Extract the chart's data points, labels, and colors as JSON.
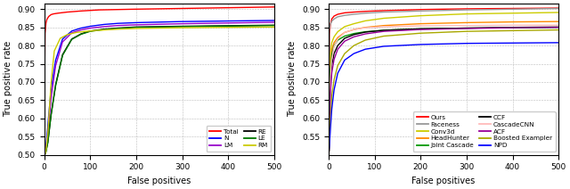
{
  "plot1": {
    "xlabel": "False positives",
    "ylabel": "True positive rate",
    "xlim": [
      0,
      500
    ],
    "ylim": [
      0.5,
      0.915
    ],
    "yticks": [
      0.5,
      0.55,
      0.6,
      0.65,
      0.7,
      0.75,
      0.8,
      0.85,
      0.9
    ],
    "xticks": [
      0,
      100,
      200,
      300,
      400,
      500
    ],
    "curves": [
      {
        "label": "Total",
        "color": "#ff0000",
        "x": [
          0,
          1,
          2,
          4,
          6,
          10,
          15,
          20,
          30,
          50,
          80,
          120,
          200,
          300,
          500
        ],
        "y": [
          0.5,
          0.714,
          0.834,
          0.862,
          0.872,
          0.88,
          0.885,
          0.887,
          0.889,
          0.892,
          0.895,
          0.898,
          0.9,
          0.902,
          0.906
        ]
      },
      {
        "label": "N",
        "color": "#0000ff",
        "x": [
          0,
          1,
          3,
          8,
          15,
          25,
          40,
          60,
          80,
          100,
          130,
          160,
          200,
          300,
          500
        ],
        "y": [
          0.5,
          0.502,
          0.505,
          0.58,
          0.68,
          0.76,
          0.818,
          0.84,
          0.848,
          0.853,
          0.858,
          0.861,
          0.863,
          0.866,
          0.869
        ]
      },
      {
        "label": "LM",
        "color": "#9900cc",
        "x": [
          0,
          1,
          3,
          8,
          15,
          25,
          40,
          60,
          80,
          100,
          130,
          160,
          200,
          300,
          500
        ],
        "y": [
          0.5,
          0.502,
          0.504,
          0.555,
          0.655,
          0.745,
          0.81,
          0.835,
          0.843,
          0.848,
          0.852,
          0.855,
          0.857,
          0.86,
          0.864
        ]
      },
      {
        "label": "RE",
        "color": "#000000",
        "x": [
          0,
          1,
          3,
          8,
          15,
          25,
          40,
          60,
          80,
          100,
          130,
          160,
          200,
          300,
          500
        ],
        "y": [
          0.5,
          0.502,
          0.503,
          0.535,
          0.61,
          0.693,
          0.775,
          0.818,
          0.832,
          0.84,
          0.845,
          0.848,
          0.851,
          0.853,
          0.856
        ]
      },
      {
        "label": "LE",
        "color": "#007700",
        "x": [
          0,
          1,
          3,
          8,
          15,
          25,
          40,
          60,
          80,
          100,
          130,
          160,
          200,
          300,
          500
        ],
        "y": [
          0.5,
          0.502,
          0.503,
          0.533,
          0.608,
          0.69,
          0.773,
          0.817,
          0.831,
          0.839,
          0.844,
          0.847,
          0.85,
          0.852,
          0.855
        ]
      },
      {
        "label": "RM",
        "color": "#cccc00",
        "x": [
          0,
          1,
          3,
          8,
          15,
          22,
          35,
          50,
          70,
          90,
          120,
          160,
          200,
          300,
          500
        ],
        "y": [
          0.5,
          0.502,
          0.503,
          0.558,
          0.697,
          0.785,
          0.82,
          0.83,
          0.836,
          0.839,
          0.842,
          0.845,
          0.847,
          0.849,
          0.851
        ]
      }
    ]
  },
  "plot2": {
    "xlabel": "False positives",
    "ylabel": "True positive rate",
    "xlim": [
      0,
      500
    ],
    "ylim": [
      0.5,
      0.915
    ],
    "yticks": [
      0.55,
      0.6,
      0.65,
      0.7,
      0.75,
      0.8,
      0.85,
      0.9
    ],
    "xticks": [
      0,
      100,
      200,
      300,
      400,
      500
    ],
    "curves": [
      {
        "label": "Ours",
        "color": "#ff0000",
        "x": [
          0,
          1,
          2,
          4,
          7,
          12,
          20,
          35,
          55,
          80,
          120,
          200,
          300,
          400,
          500
        ],
        "y": [
          0.5,
          0.62,
          0.83,
          0.858,
          0.873,
          0.881,
          0.886,
          0.89,
          0.892,
          0.894,
          0.896,
          0.899,
          0.901,
          0.902,
          0.903
        ]
      },
      {
        "label": "Faceness",
        "color": "#999999",
        "x": [
          0,
          1,
          2,
          4,
          7,
          12,
          20,
          35,
          55,
          80,
          120,
          200,
          300,
          400,
          500
        ],
        "y": [
          0.5,
          0.51,
          0.845,
          0.858,
          0.867,
          0.873,
          0.879,
          0.883,
          0.886,
          0.889,
          0.892,
          0.895,
          0.898,
          0.9,
          0.902
        ]
      },
      {
        "label": "Conv3d",
        "color": "#cccc00",
        "x": [
          0,
          1,
          2,
          4,
          7,
          12,
          20,
          35,
          55,
          80,
          120,
          200,
          300,
          400,
          500
        ],
        "y": [
          0.5,
          0.51,
          0.7,
          0.775,
          0.808,
          0.824,
          0.838,
          0.852,
          0.86,
          0.868,
          0.875,
          0.882,
          0.887,
          0.889,
          0.891
        ]
      },
      {
        "label": "HeadHunter",
        "color": "#ff8800",
        "x": [
          0,
          1,
          2,
          4,
          7,
          12,
          20,
          35,
          55,
          80,
          120,
          200,
          300,
          400,
          500
        ],
        "y": [
          0.5,
          0.51,
          0.64,
          0.745,
          0.788,
          0.808,
          0.822,
          0.836,
          0.844,
          0.85,
          0.855,
          0.86,
          0.863,
          0.865,
          0.866
        ]
      },
      {
        "label": "Joint Cascade",
        "color": "#009900",
        "x": [
          0,
          1,
          2,
          4,
          7,
          12,
          20,
          35,
          55,
          80,
          120,
          200,
          300,
          400,
          500
        ],
        "y": [
          0.5,
          0.51,
          0.62,
          0.73,
          0.775,
          0.8,
          0.815,
          0.826,
          0.833,
          0.838,
          0.842,
          0.846,
          0.848,
          0.849,
          0.85
        ]
      },
      {
        "label": "CCF",
        "color": "#000000",
        "x": [
          0,
          1,
          2,
          4,
          7,
          12,
          20,
          35,
          55,
          80,
          120,
          200,
          300,
          400,
          500
        ],
        "y": [
          0.5,
          0.51,
          0.58,
          0.69,
          0.745,
          0.778,
          0.8,
          0.82,
          0.83,
          0.837,
          0.842,
          0.846,
          0.848,
          0.85,
          0.851
        ]
      },
      {
        "label": "CascadeCNN",
        "color": "#ffbbbb",
        "x": [
          0,
          1,
          2,
          4,
          7,
          12,
          20,
          35,
          55,
          80,
          120,
          200,
          300,
          400,
          500
        ],
        "y": [
          0.5,
          0.51,
          0.59,
          0.71,
          0.762,
          0.797,
          0.818,
          0.836,
          0.844,
          0.849,
          0.852,
          0.854,
          0.855,
          0.856,
          0.856
        ]
      },
      {
        "label": "ACF",
        "color": "#990099",
        "x": [
          0,
          1,
          2,
          4,
          7,
          12,
          20,
          35,
          55,
          80,
          120,
          200,
          300,
          400,
          500
        ],
        "y": [
          0.5,
          0.51,
          0.56,
          0.67,
          0.725,
          0.762,
          0.79,
          0.812,
          0.824,
          0.832,
          0.839,
          0.844,
          0.847,
          0.849,
          0.85
        ]
      },
      {
        "label": "Boosted Exampler",
        "color": "#aaaa00",
        "x": [
          0,
          1,
          2,
          4,
          7,
          12,
          20,
          35,
          55,
          80,
          120,
          200,
          300,
          400,
          500
        ],
        "y": [
          0.5,
          0.51,
          0.53,
          0.6,
          0.66,
          0.706,
          0.745,
          0.778,
          0.8,
          0.815,
          0.826,
          0.834,
          0.839,
          0.841,
          0.843
        ]
      },
      {
        "label": "NPD",
        "color": "#0000ff",
        "x": [
          0,
          1,
          2,
          4,
          7,
          12,
          20,
          35,
          55,
          80,
          120,
          200,
          300,
          400,
          500
        ],
        "y": [
          0.5,
          0.51,
          0.525,
          0.57,
          0.625,
          0.678,
          0.724,
          0.76,
          0.778,
          0.79,
          0.798,
          0.803,
          0.806,
          0.807,
          0.808
        ]
      }
    ]
  },
  "figsize": [
    6.4,
    2.12
  ],
  "dpi": 100
}
